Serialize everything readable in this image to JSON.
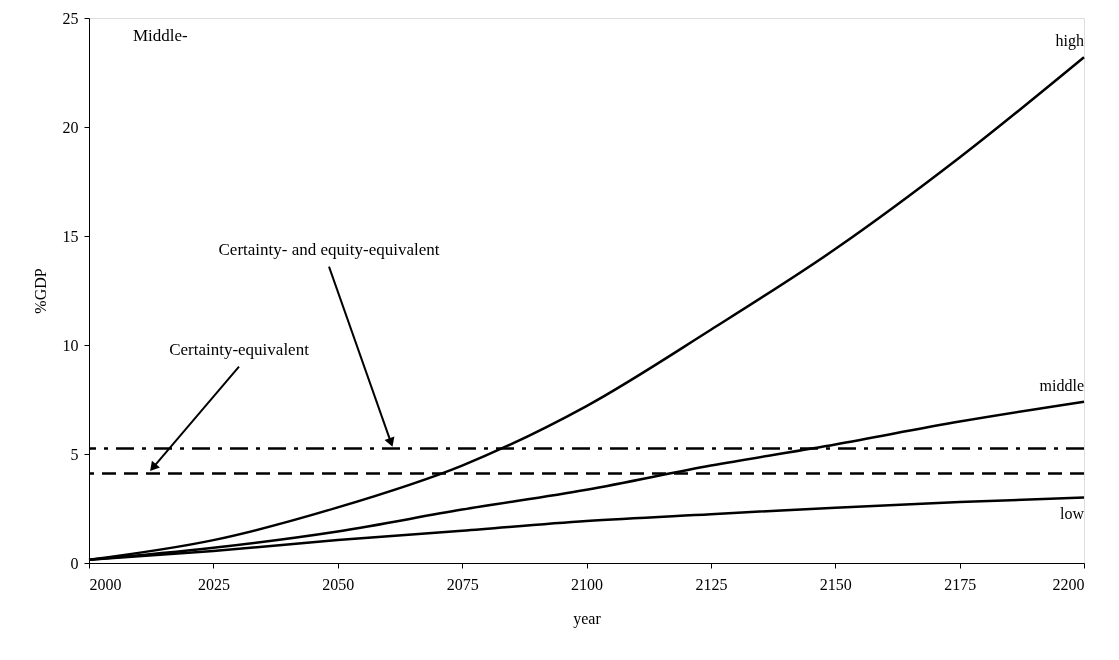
{
  "chart_data": {
    "type": "line",
    "xlabel": "year",
    "ylabel": "%GDP",
    "x": [
      2000,
      2025,
      2050,
      2075,
      2100,
      2125,
      2150,
      2175,
      2200
    ],
    "series": [
      {
        "name": "high",
        "color": "#000000",
        "values": [
          0.15,
          1.05,
          2.55,
          4.47,
          7.2,
          10.7,
          14.4,
          18.6,
          23.2
        ]
      },
      {
        "name": "middle",
        "color": "#000000",
        "values": [
          0.15,
          0.7,
          1.45,
          2.45,
          3.36,
          4.47,
          5.44,
          6.49,
          7.4
        ]
      },
      {
        "name": "low",
        "color": "#000000",
        "values": [
          0.15,
          0.55,
          1.05,
          1.48,
          1.93,
          2.24,
          2.54,
          2.8,
          3.0
        ]
      }
    ],
    "xlim": [
      2000,
      2200
    ],
    "xticks": [
      2000,
      2025,
      2050,
      2075,
      2100,
      2125,
      2150,
      2175,
      2200
    ],
    "ylim": [
      0,
      25
    ],
    "yticks": [
      0,
      5,
      10,
      15,
      20,
      25
    ],
    "ref_lines": [
      {
        "axis": "y",
        "value": 4.1,
        "label": "Certainty-equivalent",
        "line_style": "dashed",
        "color": "#000000"
      },
      {
        "axis": "y",
        "value": 5.25,
        "label": "Certainty- and equity-equivalent",
        "line_style": "dashdot",
        "color": "#000000"
      }
    ],
    "annotations": [
      "Middle-"
    ],
    "grid": false,
    "marker": "none",
    "line_style": "solid"
  }
}
